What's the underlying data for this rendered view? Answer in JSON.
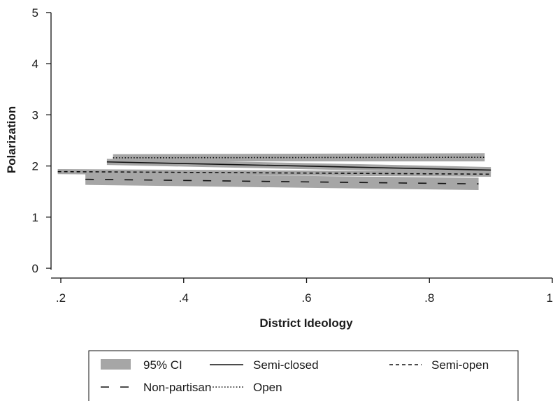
{
  "chart_data": {
    "type": "line",
    "title": "",
    "xlabel": "District Ideology",
    "ylabel": "Polarization",
    "xlim": [
      0.2,
      1.0
    ],
    "ylim": [
      0,
      5
    ],
    "x_ticks": [
      {
        "value": 0.2,
        "label": ".2"
      },
      {
        "value": 0.4,
        "label": ".4"
      },
      {
        "value": 0.6,
        "label": ".6"
      },
      {
        "value": 0.8,
        "label": ".8"
      },
      {
        "value": 1.0,
        "label": "1"
      }
    ],
    "y_ticks": [
      {
        "value": 0,
        "label": "0"
      },
      {
        "value": 1,
        "label": "1"
      },
      {
        "value": 2,
        "label": "2"
      },
      {
        "value": 3,
        "label": "3"
      },
      {
        "value": 4,
        "label": "4"
      },
      {
        "value": 5,
        "label": "5"
      }
    ],
    "grid": false,
    "legend_position": "bottom",
    "ci_color": "#a6a6a6",
    "line_color": "#111111",
    "series": [
      {
        "name": "Semi-closed",
        "style": "solid",
        "x": [
          0.275,
          0.9
        ],
        "y": [
          2.08,
          1.92
        ],
        "ci_low": [
          2.02,
          1.86
        ],
        "ci_high": [
          2.14,
          1.98
        ]
      },
      {
        "name": "Semi-open",
        "style": "shortdash",
        "x": [
          0.195,
          0.9
        ],
        "y": [
          1.89,
          1.84
        ],
        "ci_low": [
          1.84,
          1.79
        ],
        "ci_high": [
          1.94,
          1.89
        ]
      },
      {
        "name": "Non-partisan",
        "style": "longdash",
        "x": [
          0.24,
          0.88
        ],
        "y": [
          1.74,
          1.65
        ],
        "ci_low": [
          1.63,
          1.53
        ],
        "ci_high": [
          1.85,
          1.77
        ]
      },
      {
        "name": "Open",
        "style": "dotted",
        "x": [
          0.285,
          0.89
        ],
        "y": [
          2.16,
          2.17
        ],
        "ci_low": [
          2.09,
          2.09
        ],
        "ci_high": [
          2.23,
          2.25
        ]
      }
    ],
    "legend": {
      "ci_label": "95% CI",
      "items": [
        "Semi-closed",
        "Semi-open",
        "Non-partisan",
        "Open"
      ]
    }
  }
}
